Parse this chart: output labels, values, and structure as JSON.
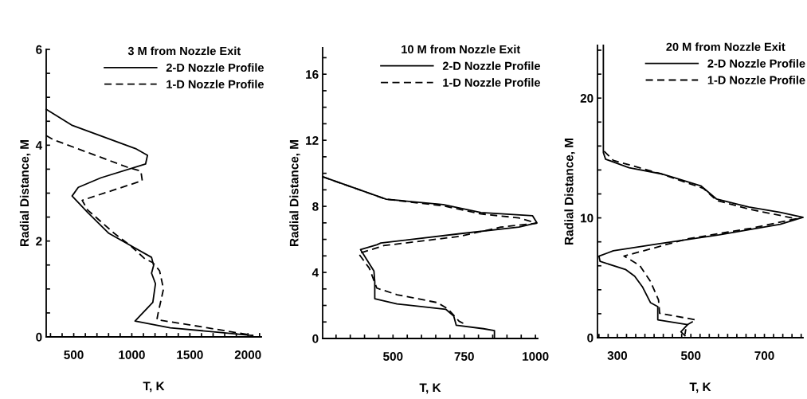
{
  "chart_data": [
    {
      "type": "line",
      "legend_title": "3 M from Nozzle Exit",
      "xlabel": "T, K",
      "ylabel": "Radial Distance, M",
      "legend": "top right",
      "xlim": [
        263,
        2115
      ],
      "ylim": [
        0,
        6
      ],
      "xticks": [
        {
          "value": 300,
          "label": null
        },
        {
          "value": 400,
          "label": null
        },
        500,
        {
          "value": 600,
          "label": null
        },
        {
          "value": 700,
          "label": null
        },
        {
          "value": 800,
          "label": null
        },
        {
          "value": 900,
          "label": null
        },
        1000,
        {
          "value": 1100,
          "label": null
        },
        {
          "value": 1200,
          "label": null
        },
        {
          "value": 1300,
          "label": null
        },
        {
          "value": 1400,
          "label": null
        },
        1500,
        {
          "value": 1600,
          "label": null
        },
        {
          "value": 1700,
          "label": null
        },
        {
          "value": 1800,
          "label": null
        },
        {
          "value": 1900,
          "label": null
        },
        2000,
        {
          "value": 2100,
          "label": null
        }
      ],
      "yticks": [
        0,
        {
          "value": 0.5,
          "label": null
        },
        {
          "value": 1,
          "label": null
        },
        {
          "value": 1.5,
          "label": null
        },
        2,
        {
          "value": 2.5,
          "label": null
        },
        {
          "value": 3,
          "label": null
        },
        {
          "value": 3.5,
          "label": null
        },
        4,
        {
          "value": 4.5,
          "label": null
        },
        {
          "value": 5,
          "label": null
        },
        {
          "value": 5.5,
          "label": null
        },
        6
      ],
      "series": [
        {
          "name": "2-D Nozzle Profile",
          "color": "#000000",
          "line_style": "solid",
          "x": [
            263,
            482,
            1032,
            1135,
            1119,
            734,
            539,
            486,
            619,
            803,
            986,
            1170,
            1188,
            1170,
            1204,
            1181,
            1028,
            1330,
            2042
          ],
          "values": [
            4.75,
            4.42,
            3.93,
            3.79,
            3.61,
            3.32,
            3.12,
            2.94,
            2.6,
            2.16,
            1.91,
            1.66,
            1.49,
            1.33,
            1.11,
            0.72,
            0.33,
            0.19,
            0.03
          ]
        },
        {
          "name": "1-D Nozzle Profile",
          "color": "#000000",
          "line_style": "dashed",
          "x": [
            263,
            320,
            963,
            1078,
            1090,
            573,
            619,
            849,
            986,
            1112,
            1181,
            1239,
            1273,
            1227,
            1216,
            1652,
            2042
          ],
          "values": [
            4.2,
            4.12,
            3.54,
            3.46,
            3.26,
            2.85,
            2.65,
            2.16,
            1.91,
            1.63,
            1.55,
            1.38,
            1.0,
            0.5,
            0.36,
            0.19,
            0.03
          ]
        }
      ]
    },
    {
      "type": "line",
      "legend_title": "10 M from Nozzle Exit",
      "xlabel": "T, K",
      "ylabel": "Radial Distance, M",
      "legend": "top right",
      "xlim": [
        253,
        1008
      ],
      "ylim": [
        0,
        17.6
      ],
      "xticks": [
        {
          "value": 300,
          "label": null
        },
        {
          "value": 350,
          "label": null
        },
        {
          "value": 400,
          "label": null
        },
        {
          "value": 450,
          "label": null
        },
        500,
        {
          "value": 550,
          "label": null
        },
        {
          "value": 600,
          "label": null
        },
        {
          "value": 650,
          "label": null
        },
        {
          "value": 700,
          "label": null
        },
        750,
        {
          "value": 800,
          "label": null
        },
        {
          "value": 850,
          "label": null
        },
        {
          "value": 900,
          "label": null
        },
        {
          "value": 950,
          "label": null
        },
        1000
      ],
      "yticks": [
        0,
        {
          "value": 1,
          "label": null
        },
        {
          "value": 2,
          "label": null
        },
        {
          "value": 3,
          "label": null
        },
        4,
        {
          "value": 5,
          "label": null
        },
        {
          "value": 6,
          "label": null
        },
        {
          "value": 7,
          "label": null
        },
        8,
        {
          "value": 9,
          "label": null
        },
        {
          "value": 10,
          "label": null
        },
        {
          "value": 11,
          "label": null
        },
        12,
        {
          "value": 13,
          "label": null
        },
        {
          "value": 14,
          "label": null
        },
        {
          "value": 15,
          "label": null
        },
        16,
        {
          "value": 17,
          "label": null
        }
      ],
      "series": [
        {
          "name": "2-D Nozzle Profile",
          "color": "#000000",
          "line_style": "solid",
          "x": [
            253,
            476,
            676,
            809,
            990,
            1005,
            942,
            733,
            457,
            443,
            386,
            433,
            436,
            436,
            514,
            685,
            713,
            722,
            818,
            856,
            856
          ],
          "values": [
            9.79,
            8.43,
            8.11,
            7.62,
            7.43,
            7.0,
            6.74,
            6.34,
            5.78,
            5.67,
            5.38,
            4.09,
            3.45,
            2.41,
            2.09,
            1.77,
            1.36,
            0.8,
            0.59,
            0.48,
            0
          ]
        },
        {
          "name": "1-D Nozzle Profile",
          "color": "#000000",
          "line_style": "dashed",
          "x": [
            253,
            476,
            676,
            809,
            942,
            1004,
            878,
            733,
            467,
            379,
            417,
            443,
            514,
            656,
            694,
            732,
            751
          ],
          "values": [
            9.79,
            8.43,
            8.03,
            7.54,
            7.3,
            6.98,
            6.74,
            6.18,
            5.62,
            5.14,
            4.25,
            3.05,
            2.65,
            2.17,
            1.77,
            1.04,
            0.88
          ]
        }
      ]
    },
    {
      "type": "line",
      "legend_title": "20 M from Nozzle Exit",
      "xlabel": "T, K",
      "ylabel": "Radial Distance, M",
      "legend": "top right",
      "xlim": [
        246,
        805
      ],
      "ylim": [
        0,
        24.4
      ],
      "xticks": [
        {
          "value": 250,
          "label": null
        },
        {
          "value": 275,
          "label": null
        },
        300,
        {
          "value": 325,
          "label": null
        },
        {
          "value": 350,
          "label": null
        },
        {
          "value": 375,
          "label": null
        },
        {
          "value": 400,
          "label": null
        },
        {
          "value": 425,
          "label": null
        },
        {
          "value": 450,
          "label": null
        },
        {
          "value": 475,
          "label": null
        },
        500,
        {
          "value": 525,
          "label": null
        },
        {
          "value": 550,
          "label": null
        },
        {
          "value": 575,
          "label": null
        },
        {
          "value": 600,
          "label": null
        },
        {
          "value": 625,
          "label": null
        },
        {
          "value": 650,
          "label": null
        },
        {
          "value": 675,
          "label": null
        },
        700,
        {
          "value": 725,
          "label": null
        },
        {
          "value": 750,
          "label": null
        },
        {
          "value": 775,
          "label": null
        },
        {
          "value": 800,
          "label": null
        }
      ],
      "yticks": [
        0,
        {
          "value": 2,
          "label": null
        },
        {
          "value": 4,
          "label": null
        },
        {
          "value": 6,
          "label": null
        },
        {
          "value": 8,
          "label": null
        },
        10,
        {
          "value": 12,
          "label": null
        },
        {
          "value": 14,
          "label": null
        },
        {
          "value": 16,
          "label": null
        },
        {
          "value": 18,
          "label": null
        },
        20,
        {
          "value": 22,
          "label": null
        },
        {
          "value": 24,
          "label": null
        }
      ],
      "series": [
        {
          "name": "2-D Nozzle Profile",
          "color": "#000000",
          "line_style": "solid",
          "x": [
            262,
            262,
            268,
            332,
            419,
            455,
            527,
            570,
            657,
            743,
            805,
            743,
            577,
            405,
            289,
            250,
            253,
            322,
            347,
            368,
            390,
            410,
            410,
            491,
            473,
            484
          ],
          "values": [
            24.4,
            15.45,
            14.9,
            14.19,
            13.68,
            13.35,
            12.68,
            11.57,
            10.91,
            10.47,
            10.04,
            9.47,
            8.58,
            7.8,
            7.25,
            6.81,
            6.37,
            5.7,
            5.14,
            4.26,
            2.93,
            2.59,
            1.49,
            1.09,
            0.49,
            0.16
          ]
        },
        {
          "name": "1-D Nozzle Profile",
          "color": "#000000",
          "line_style": "dashed",
          "x": [
            264,
            289,
            419,
            534,
            570,
            664,
            787,
            664,
            491,
            318,
            361,
            390,
            412,
            415,
            513,
            488,
            484
          ],
          "values": [
            15.57,
            14.8,
            13.68,
            12.46,
            11.46,
            10.69,
            9.93,
            9.14,
            8.25,
            6.81,
            6.03,
            4.7,
            3.15,
            2.04,
            1.49,
            1.04,
            0.27
          ]
        }
      ]
    }
  ]
}
